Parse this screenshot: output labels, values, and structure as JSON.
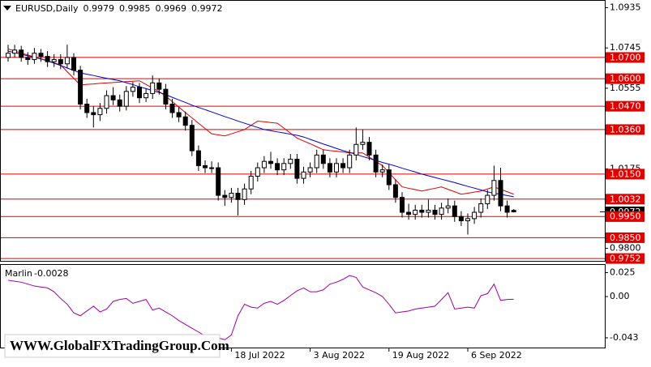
{
  "chart_data": {
    "type": "candlestick",
    "title": "EURUSD,Daily",
    "categories": [
      null,
      null,
      null,
      null,
      null,
      null,
      null,
      null,
      null,
      null,
      null,
      null,
      null,
      null,
      null,
      null,
      null,
      null,
      null,
      null,
      null,
      null,
      null,
      null,
      null,
      null,
      null,
      null,
      null,
      null,
      null,
      null,
      null,
      null,
      "18 Jul 2022",
      null,
      null,
      null,
      null,
      null,
      null,
      null,
      null,
      null,
      null,
      null,
      "3 Aug 2022",
      null,
      null,
      null,
      null,
      null,
      null,
      null,
      null,
      null,
      null,
      null,
      "19 Aug 2022",
      null,
      null,
      null,
      null,
      null,
      null,
      null,
      null,
      null,
      null,
      null,
      "6 Sep 2022",
      null,
      null,
      null,
      null,
      null,
      null,
      null
    ],
    "ohlc": [
      [
        1.07,
        1.076,
        1.068,
        1.072
      ],
      [
        1.072,
        1.076,
        1.07,
        1.0735
      ],
      [
        1.0735,
        1.0755,
        1.068,
        1.07
      ],
      [
        1.07,
        1.0725,
        1.0665,
        1.069
      ],
      [
        1.069,
        1.0745,
        1.067,
        1.072
      ],
      [
        1.072,
        1.074,
        1.068,
        1.0705
      ],
      [
        1.0705,
        1.073,
        1.0655,
        1.068
      ],
      [
        1.068,
        1.0715,
        1.0655,
        1.069
      ],
      [
        1.069,
        1.0715,
        1.0645,
        1.067
      ],
      [
        1.067,
        1.076,
        1.065,
        1.07
      ],
      [
        1.07,
        1.072,
        1.0615,
        1.064
      ],
      [
        1.064,
        1.066,
        1.0455,
        1.048
      ],
      [
        1.048,
        1.0505,
        1.0415,
        1.044
      ],
      [
        1.044,
        1.047,
        1.037,
        1.043
      ],
      [
        1.043,
        1.0485,
        1.04,
        1.046
      ],
      [
        1.046,
        1.0545,
        1.0435,
        1.052
      ],
      [
        1.052,
        1.056,
        1.0475,
        1.05
      ],
      [
        1.05,
        1.0525,
        1.0445,
        1.047
      ],
      [
        1.047,
        1.0565,
        1.045,
        1.054
      ],
      [
        1.054,
        1.0585,
        1.0515,
        1.056
      ],
      [
        1.056,
        1.058,
        1.0485,
        1.051
      ],
      [
        1.051,
        1.0555,
        1.049,
        1.053
      ],
      [
        1.053,
        1.0615,
        1.0505,
        1.058
      ],
      [
        1.058,
        1.06,
        1.0525,
        1.055
      ],
      [
        1.055,
        1.0575,
        1.0455,
        1.048
      ],
      [
        1.048,
        1.0505,
        1.0415,
        1.044
      ],
      [
        1.044,
        1.0465,
        1.0395,
        1.042
      ],
      [
        1.042,
        1.0445,
        1.0355,
        1.038
      ],
      [
        1.038,
        1.0405,
        1.0235,
        1.026
      ],
      [
        1.026,
        1.0285,
        1.0165,
        1.019
      ],
      [
        1.019,
        1.0215,
        1.0155,
        1.018
      ],
      [
        1.018,
        1.021,
        1.0155,
        1.018
      ],
      [
        1.018,
        1.0205,
        1.0025,
        1.005
      ],
      [
        1.005,
        1.0075,
        1.0,
        1.004
      ],
      [
        1.004,
        1.0085,
        1.0015,
        1.006
      ],
      [
        1.006,
        1.0085,
        0.9955,
        1.003
      ],
      [
        1.003,
        1.0105,
        1.0005,
        1.008
      ],
      [
        1.008,
        1.0165,
        1.0055,
        1.014
      ],
      [
        1.014,
        1.0205,
        1.0115,
        1.018
      ],
      [
        1.018,
        1.0235,
        1.0155,
        1.021
      ],
      [
        1.021,
        1.0255,
        1.0175,
        1.02
      ],
      [
        1.02,
        1.0225,
        1.0145,
        1.017
      ],
      [
        1.017,
        1.0225,
        1.0145,
        1.02
      ],
      [
        1.02,
        1.0245,
        1.0175,
        1.022
      ],
      [
        1.022,
        1.0245,
        1.0105,
        1.013
      ],
      [
        1.013,
        1.0185,
        1.0105,
        1.016
      ],
      [
        1.016,
        1.0205,
        1.0135,
        1.018
      ],
      [
        1.018,
        1.0265,
        1.0155,
        1.024
      ],
      [
        1.024,
        1.0265,
        1.0175,
        1.02
      ],
      [
        1.02,
        1.0225,
        1.0135,
        1.016
      ],
      [
        1.016,
        1.0225,
        1.0135,
        1.02
      ],
      [
        1.02,
        1.0225,
        1.0155,
        1.018
      ],
      [
        1.018,
        1.0265,
        1.0155,
        1.024
      ],
      [
        1.024,
        1.037,
        1.0215,
        1.029
      ],
      [
        1.029,
        1.036,
        1.0265,
        1.03
      ],
      [
        1.03,
        1.0325,
        1.0215,
        1.024
      ],
      [
        1.024,
        1.0265,
        1.0135,
        1.016
      ],
      [
        1.016,
        1.0195,
        1.0135,
        1.017
      ],
      [
        1.017,
        1.0195,
        1.0075,
        1.01
      ],
      [
        1.01,
        1.0125,
        1.0015,
        1.004
      ],
      [
        1.004,
        1.0065,
        0.9945,
        0.997
      ],
      [
        0.997,
        1.001,
        0.9935,
        0.996
      ],
      [
        0.996,
        1.0005,
        0.9935,
        0.998
      ],
      [
        0.998,
        1.0005,
        0.9945,
        0.997
      ],
      [
        0.997,
        1.003,
        0.9945,
        0.998
      ],
      [
        0.998,
        1.0005,
        0.9935,
        0.996
      ],
      [
        0.996,
        1.0015,
        0.9935,
        0.999
      ],
      [
        0.999,
        1.0035,
        0.9965,
        1.0
      ],
      [
        1.0,
        1.0025,
        0.9925,
        0.995
      ],
      [
        0.995,
        0.9975,
        0.9905,
        0.993
      ],
      [
        0.993,
        0.9965,
        0.9865,
        0.994
      ],
      [
        0.994,
        0.9995,
        0.9915,
        0.997
      ],
      [
        0.997,
        1.0035,
        0.9945,
        1.001
      ],
      [
        1.001,
        1.0075,
        0.9985,
        1.005
      ],
      [
        1.005,
        1.019,
        1.0025,
        1.012
      ],
      [
        1.012,
        1.018,
        0.9975,
        1.0
      ],
      [
        1.0,
        1.0025,
        0.9945,
        0.997
      ],
      [
        0.9979,
        0.9985,
        0.9969,
        0.9972
      ]
    ],
    "ylim": [
      0.9737,
      1.0971
    ],
    "yticks": [
      1.0935,
      1.0745,
      1.0555,
      1.0175,
      {
        "value": 0.98,
        "label": "0.9800"
      }
    ],
    "levels": [
      {
        "value": 1.07,
        "label": "1.0700"
      },
      {
        "value": 1.06,
        "label": "1.0600"
      },
      {
        "value": 1.047,
        "label": "1.0470"
      },
      {
        "value": 1.036,
        "label": "1.0360"
      },
      {
        "value": 1.015,
        "label": "1.0150"
      },
      {
        "value": 1.0032,
        "label": "1.0032"
      },
      {
        "value": 0.995,
        "label": "0.9950"
      },
      {
        "value": 0.985,
        "label": "0.9850"
      },
      {
        "value": 0.9752,
        "label": "0.9752"
      }
    ],
    "level_color": "#e00000",
    "up_color": "#ffffff",
    "down_color": "#000000",
    "ma": [
      {
        "color": "#e00000",
        "values": [
          1.074,
          1.0731,
          1.0721,
          1.0712,
          1.0702,
          1.0693,
          1.0684,
          1.0674,
          1.0665,
          1.0633,
          1.0602,
          1.057,
          1.0573,
          1.0575,
          1.0578,
          1.058,
          1.0582,
          1.0584,
          1.0586,
          1.0588,
          1.059,
          1.0573,
          1.0556,
          1.0539,
          1.0518,
          1.0492,
          1.0466,
          1.044,
          1.0415,
          1.039,
          1.0365,
          1.034,
          1.0335,
          1.033,
          1.034,
          1.035,
          1.036,
          1.038,
          1.04,
          1.0397,
          1.0393,
          1.039,
          1.0367,
          1.0343,
          1.032,
          1.0306,
          1.0293,
          1.0279,
          1.0265,
          1.0261,
          1.0258,
          1.0254,
          1.025,
          1.025,
          1.025,
          1.023,
          1.021,
          1.019,
          1.0157,
          1.0123,
          1.009,
          1.0083,
          1.0077,
          1.007,
          1.0077,
          1.0083,
          1.009,
          1.0078,
          1.0067,
          1.0055,
          1.006,
          1.0065,
          1.007,
          1.008,
          1.009,
          1.0078,
          1.0067,
          1.0055
        ]
      },
      {
        "color": "#0000cc",
        "values": [
          1.073,
          1.0723,
          1.0715,
          1.0708,
          1.07,
          1.0693,
          1.0685,
          1.0673,
          1.0662,
          1.065,
          1.0639,
          1.0627,
          1.0621,
          1.0615,
          1.0608,
          1.0602,
          1.0596,
          1.059,
          1.0581,
          1.0572,
          1.0562,
          1.0553,
          1.0544,
          1.0535,
          1.0525,
          1.0512,
          1.05,
          1.0488,
          1.0475,
          1.0464,
          1.0454,
          1.0443,
          1.0432,
          1.0421,
          1.0411,
          1.04,
          1.039,
          1.038,
          1.037,
          1.036,
          1.0355,
          1.0349,
          1.0344,
          1.0338,
          1.0333,
          1.0325,
          1.0314,
          1.0303,
          1.0292,
          1.0282,
          1.0271,
          1.0261,
          1.0252,
          1.0243,
          1.0233,
          1.0224,
          1.0215,
          1.0205,
          1.0197,
          1.0188,
          1.0178,
          1.0169,
          1.016,
          1.015,
          1.0142,
          1.0134,
          1.0126,
          1.0118,
          1.011,
          1.0101,
          1.0092,
          1.0084,
          1.0075,
          1.0066,
          1.006,
          1.0055,
          1.0049,
          1.0043
        ]
      }
    ],
    "indicator": {
      "title": "Marlin",
      "color": "#a000a0",
      "ylim": [
        -0.054,
        0.033
      ],
      "yticks": [
        0.025,
        {
          "value": 0,
          "label": "0.00"
        },
        -0.043
      ],
      "values": [
        0.017,
        0.016,
        0.015,
        0.013,
        0.011,
        0.01,
        0.009,
        0.005,
        -0.002,
        -0.008,
        -0.017,
        -0.02,
        -0.015,
        -0.01,
        -0.016,
        -0.013,
        -0.005,
        -0.003,
        -0.002,
        -0.007,
        -0.005,
        -0.003,
        -0.014,
        -0.012,
        -0.016,
        -0.02,
        -0.025,
        -0.029,
        -0.033,
        -0.037,
        -0.041,
        -0.04,
        -0.043,
        -0.045,
        -0.04,
        -0.02,
        -0.008,
        -0.011,
        -0.012,
        -0.007,
        -0.005,
        -0.008,
        -0.004,
        0.001,
        0.006,
        0.009,
        0.005,
        0.005,
        0.007,
        0.013,
        0.015,
        0.018,
        0.022,
        0.02,
        0.01,
        0.007,
        0.004,
        0.0,
        -0.008,
        -0.017,
        -0.016,
        -0.015,
        -0.013,
        -0.012,
        -0.011,
        -0.01,
        -0.003,
        0.004,
        -0.013,
        -0.012,
        -0.011,
        -0.012,
        0.001,
        0.003,
        0.013,
        -0.004,
        -0.003,
        -0.0028
      ]
    },
    "watermark": "WWW.GlobalFXTradingGroup.Com"
  }
}
